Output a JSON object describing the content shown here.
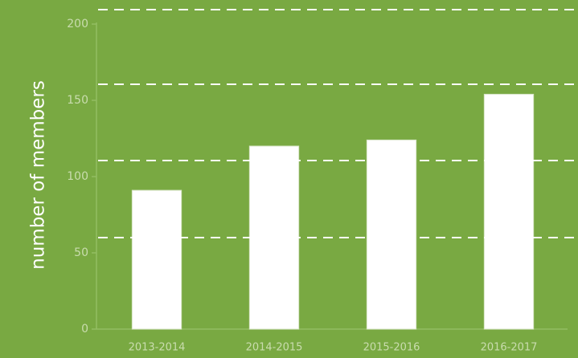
{
  "chart_data": {
    "type": "bar",
    "y_label": "number of members",
    "categories": [
      "2013-2014",
      "2014-2015",
      "2015-2016",
      "2016-2017"
    ],
    "values": [
      91,
      120,
      124,
      154
    ],
    "color": "#ffffff",
    "ylim": [
      0,
      200
    ],
    "yticks": [
      0,
      50,
      100,
      150,
      200
    ]
  }
}
